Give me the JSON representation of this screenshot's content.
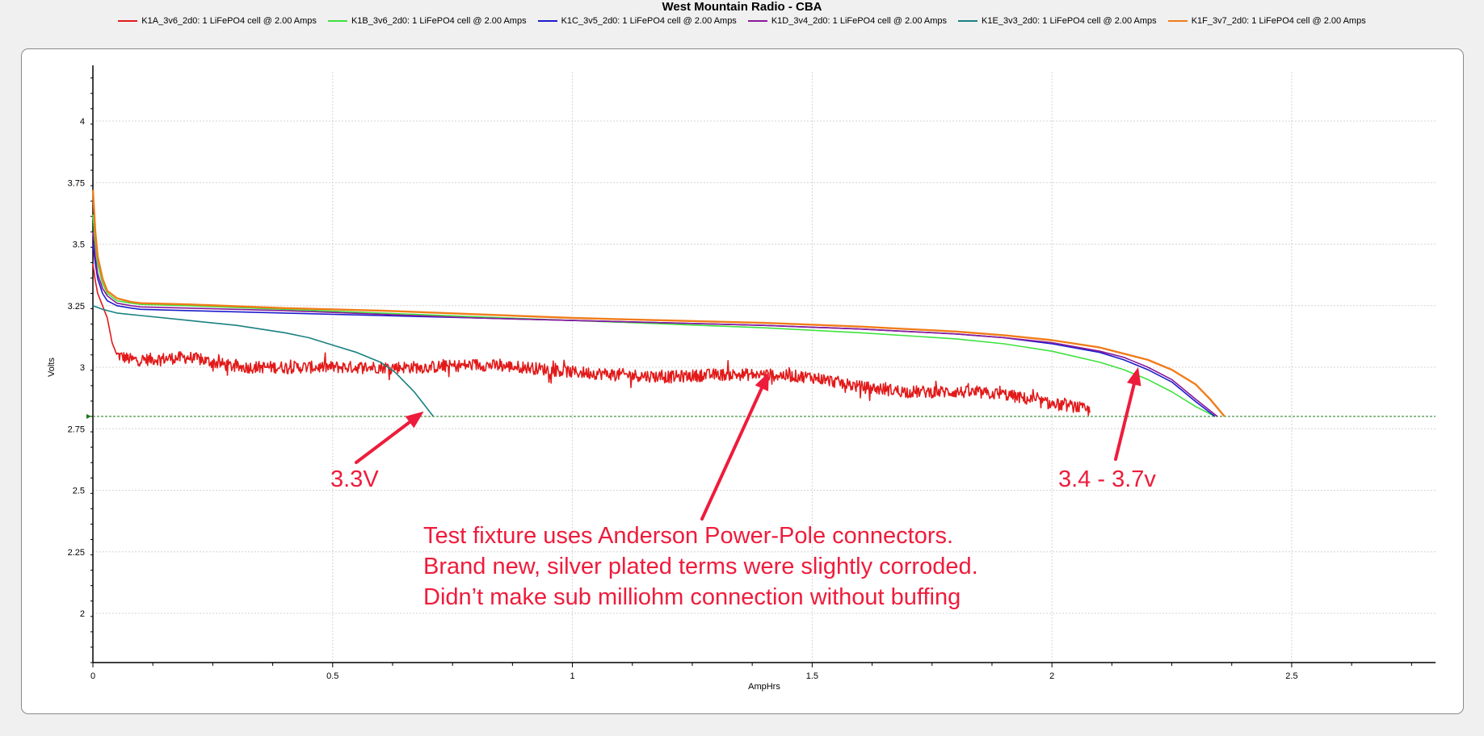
{
  "chart_data": {
    "type": "line",
    "title": "West Mountain Radio - CBA",
    "xlabel": "AmpHrs",
    "ylabel": "Volts",
    "xlim": [
      0,
      2.8
    ],
    "ylim": [
      1.8,
      4.2
    ],
    "xticks": [
      "0",
      "0.5",
      "1",
      "1.5",
      "2",
      "2.5"
    ],
    "yticks": [
      "2",
      "2.25",
      "2.5",
      "2.75",
      "3",
      "3.25",
      "3.5",
      "3.75",
      "4"
    ],
    "grid": true,
    "legend_position": "top",
    "cutoff_line": {
      "y": 2.8,
      "color": "#1a7a1a"
    },
    "series": [
      {
        "name": "K1A_3v6_2d0: 1 LiFePO4 cell @ 2.00 Amps",
        "color": "#e21a1a",
        "noisy": true,
        "x": [
          0,
          0.005,
          0.01,
          0.02,
          0.03,
          0.04,
          0.05,
          0.08,
          0.1,
          0.2,
          0.3,
          0.4,
          0.5,
          0.6,
          0.7,
          0.8,
          0.9,
          1.0,
          1.1,
          1.2,
          1.3,
          1.4,
          1.5,
          1.6,
          1.7,
          1.8,
          1.9,
          1.95,
          2.0,
          2.05,
          2.08
        ],
        "y": [
          3.42,
          3.35,
          3.3,
          3.25,
          3.2,
          3.1,
          3.05,
          3.03,
          3.03,
          3.04,
          3.0,
          3.0,
          3.0,
          3.0,
          3.0,
          3.01,
          3.0,
          2.98,
          2.97,
          2.96,
          2.97,
          2.97,
          2.96,
          2.92,
          2.9,
          2.9,
          2.89,
          2.87,
          2.85,
          2.84,
          2.82
        ]
      },
      {
        "name": "K1B_3v6_2d0: 1 LiFePO4 cell @ 2.00 Amps",
        "color": "#3ee23e",
        "x": [
          0,
          0.005,
          0.01,
          0.02,
          0.03,
          0.05,
          0.08,
          0.1,
          0.2,
          0.4,
          0.6,
          0.8,
          1.0,
          1.2,
          1.4,
          1.6,
          1.8,
          1.9,
          2.0,
          2.1,
          2.15,
          2.2,
          2.25,
          2.3,
          2.34
        ],
        "y": [
          3.62,
          3.5,
          3.42,
          3.34,
          3.3,
          3.27,
          3.26,
          3.255,
          3.25,
          3.235,
          3.22,
          3.205,
          3.19,
          3.175,
          3.16,
          3.14,
          3.115,
          3.095,
          3.065,
          3.02,
          2.99,
          2.95,
          2.9,
          2.84,
          2.8
        ]
      },
      {
        "name": "K1C_3v5_2d0: 1 LiFePO4 cell @ 2.00 Amps",
        "color": "#1c1ccc",
        "x": [
          0,
          0.005,
          0.01,
          0.02,
          0.03,
          0.05,
          0.08,
          0.1,
          0.2,
          0.4,
          0.6,
          0.8,
          1.0,
          1.2,
          1.4,
          1.6,
          1.8,
          1.9,
          2.0,
          2.1,
          2.15,
          2.2,
          2.25,
          2.3,
          2.34
        ],
        "y": [
          3.5,
          3.42,
          3.36,
          3.3,
          3.27,
          3.25,
          3.24,
          3.235,
          3.23,
          3.22,
          3.21,
          3.2,
          3.19,
          3.18,
          3.17,
          3.155,
          3.135,
          3.12,
          3.095,
          3.06,
          3.03,
          2.99,
          2.94,
          2.86,
          2.8
        ]
      },
      {
        "name": "K1D_3v4_2d0: 1 LiFePO4 cell @ 2.00 Amps",
        "color": "#8a1a9a",
        "x": [
          0,
          0.005,
          0.01,
          0.02,
          0.03,
          0.05,
          0.08,
          0.1,
          0.2,
          0.4,
          0.6,
          0.8,
          1.0,
          1.2,
          1.4,
          1.6,
          1.8,
          1.9,
          2.0,
          2.1,
          2.15,
          2.2,
          2.25,
          2.3,
          2.345
        ],
        "y": [
          3.55,
          3.45,
          3.38,
          3.32,
          3.29,
          3.26,
          3.25,
          3.245,
          3.24,
          3.23,
          3.215,
          3.2,
          3.19,
          3.18,
          3.17,
          3.155,
          3.135,
          3.12,
          3.1,
          3.065,
          3.04,
          3.0,
          2.95,
          2.87,
          2.8
        ]
      },
      {
        "name": "K1E_3v3_2d0: 1 LiFePO4 cell @ 2.00 Amps",
        "color": "#1a8080",
        "x": [
          0,
          0.02,
          0.05,
          0.1,
          0.2,
          0.3,
          0.4,
          0.45,
          0.5,
          0.55,
          0.6,
          0.63,
          0.65,
          0.67,
          0.69,
          0.71
        ],
        "y": [
          3.25,
          3.235,
          3.22,
          3.21,
          3.19,
          3.17,
          3.14,
          3.12,
          3.09,
          3.06,
          3.02,
          2.98,
          2.94,
          2.9,
          2.85,
          2.8
        ]
      },
      {
        "name": "K1F_3v7_2d0: 1 LiFePO4 cell @ 2.00 Amps",
        "color": "#f07c1a",
        "x": [
          0,
          0.005,
          0.01,
          0.02,
          0.03,
          0.05,
          0.08,
          0.1,
          0.2,
          0.4,
          0.6,
          0.8,
          1.0,
          1.2,
          1.4,
          1.6,
          1.8,
          1.9,
          2.0,
          2.1,
          2.2,
          2.25,
          2.3,
          2.33,
          2.36
        ],
        "y": [
          3.72,
          3.55,
          3.45,
          3.36,
          3.31,
          3.28,
          3.265,
          3.26,
          3.255,
          3.24,
          3.23,
          3.215,
          3.2,
          3.19,
          3.18,
          3.165,
          3.145,
          3.13,
          3.11,
          3.08,
          3.03,
          2.99,
          2.93,
          2.87,
          2.8
        ]
      }
    ],
    "annotations": [
      {
        "text": "3.3V",
        "arrow_to": [
          0.69,
          2.82
        ]
      },
      {
        "text": "3.4 - 3.7v",
        "arrow_to": [
          2.18,
          3.0
        ]
      },
      {
        "lines": [
          "Test fixture uses Anderson Power-Pole connectors.",
          "Brand new, silver plated terms were slightly corroded.",
          "Didn’t make sub milliohm connection without buffing"
        ],
        "arrow_to": [
          1.41,
          2.98
        ]
      }
    ]
  }
}
